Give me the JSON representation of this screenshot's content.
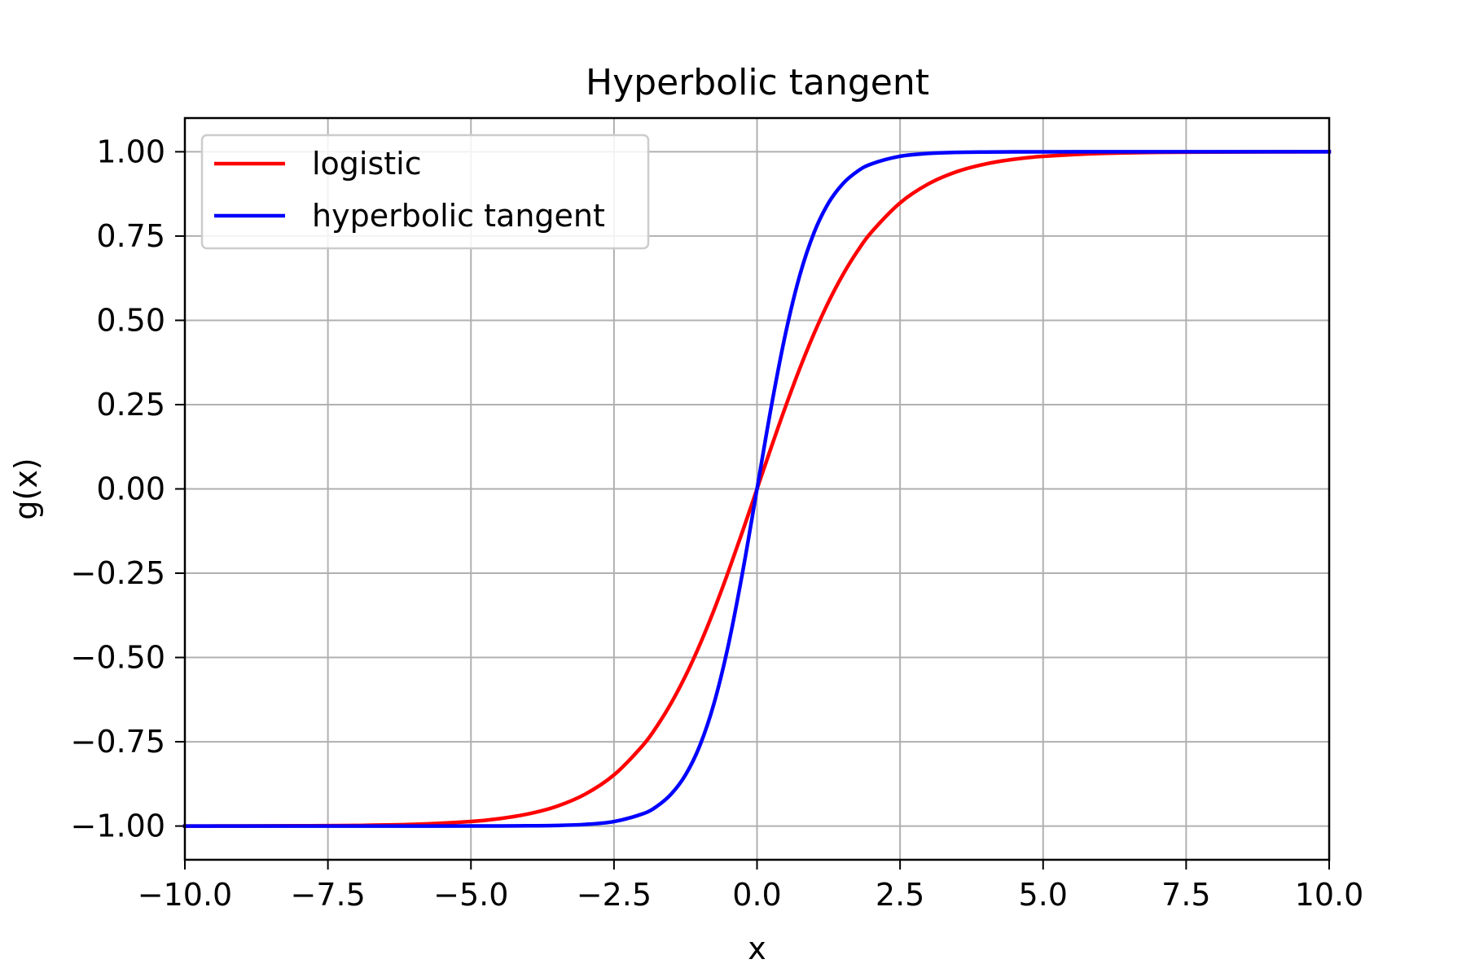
{
  "chart_data": {
    "type": "line",
    "title": "Hyperbolic tangent",
    "xlabel": "x",
    "ylabel": "g(x)",
    "xlim": [
      -10,
      10
    ],
    "ylim": [
      -1.1,
      1.1
    ],
    "grid": true,
    "legend_position": "top-left",
    "x_ticks": [
      -10,
      -7.5,
      -5,
      -2.5,
      0,
      2.5,
      5,
      7.5,
      10
    ],
    "x_tick_labels": [
      "−10.0",
      "−7.5",
      "−5.0",
      "−2.5",
      "0.0",
      "2.5",
      "5.0",
      "7.5",
      "10.0"
    ],
    "y_ticks": [
      -1,
      -0.75,
      -0.5,
      -0.25,
      0,
      0.25,
      0.5,
      0.75,
      1
    ],
    "y_tick_labels": [
      "−1.00",
      "−0.75",
      "−0.50",
      "−0.25",
      "0.00",
      "0.25",
      "0.50",
      "0.75",
      "1.00"
    ],
    "x": [
      -10,
      -9,
      -8,
      -7,
      -6,
      -5,
      -4.5,
      -4,
      -3.5,
      -3,
      -2.5,
      -2,
      -1.75,
      -1.5,
      -1.25,
      -1,
      -0.75,
      -0.5,
      -0.25,
      0,
      0.25,
      0.5,
      0.75,
      1,
      1.25,
      1.5,
      1.75,
      2,
      2.5,
      3,
      3.5,
      4,
      4.5,
      5,
      6,
      7,
      8,
      9,
      10
    ],
    "series": [
      {
        "name": "logistic",
        "color": "#ff0000",
        "values": [
          -1.0,
          -0.9998,
          -0.9993,
          -0.9982,
          -0.9951,
          -0.9866,
          -0.978,
          -0.964,
          -0.9414,
          -0.9051,
          -0.8483,
          -0.7616,
          -0.7039,
          -0.6351,
          -0.5546,
          -0.4621,
          -0.3584,
          -0.2449,
          -0.1244,
          0.0,
          0.1244,
          0.2449,
          0.3584,
          0.4621,
          0.5546,
          0.6351,
          0.7039,
          0.7616,
          0.8483,
          0.9051,
          0.9414,
          0.964,
          0.978,
          0.9866,
          0.9951,
          0.9982,
          0.9993,
          0.9998,
          1.0
        ]
      },
      {
        "name": "hyperbolic tangent",
        "color": "#0000ff",
        "values": [
          -1.0,
          -1.0,
          -1.0,
          -1.0,
          -1.0,
          -0.9999,
          -0.9998,
          -0.9993,
          -0.9982,
          -0.9951,
          -0.9866,
          -0.964,
          -0.9414,
          -0.9051,
          -0.8483,
          -0.7616,
          -0.6351,
          -0.4621,
          -0.2449,
          0.0,
          0.2449,
          0.4621,
          0.6351,
          0.7616,
          0.8483,
          0.9051,
          0.9414,
          0.964,
          0.9866,
          0.9951,
          0.9982,
          0.9993,
          0.9998,
          0.9999,
          1.0,
          1.0,
          1.0,
          1.0,
          1.0
        ]
      }
    ]
  }
}
